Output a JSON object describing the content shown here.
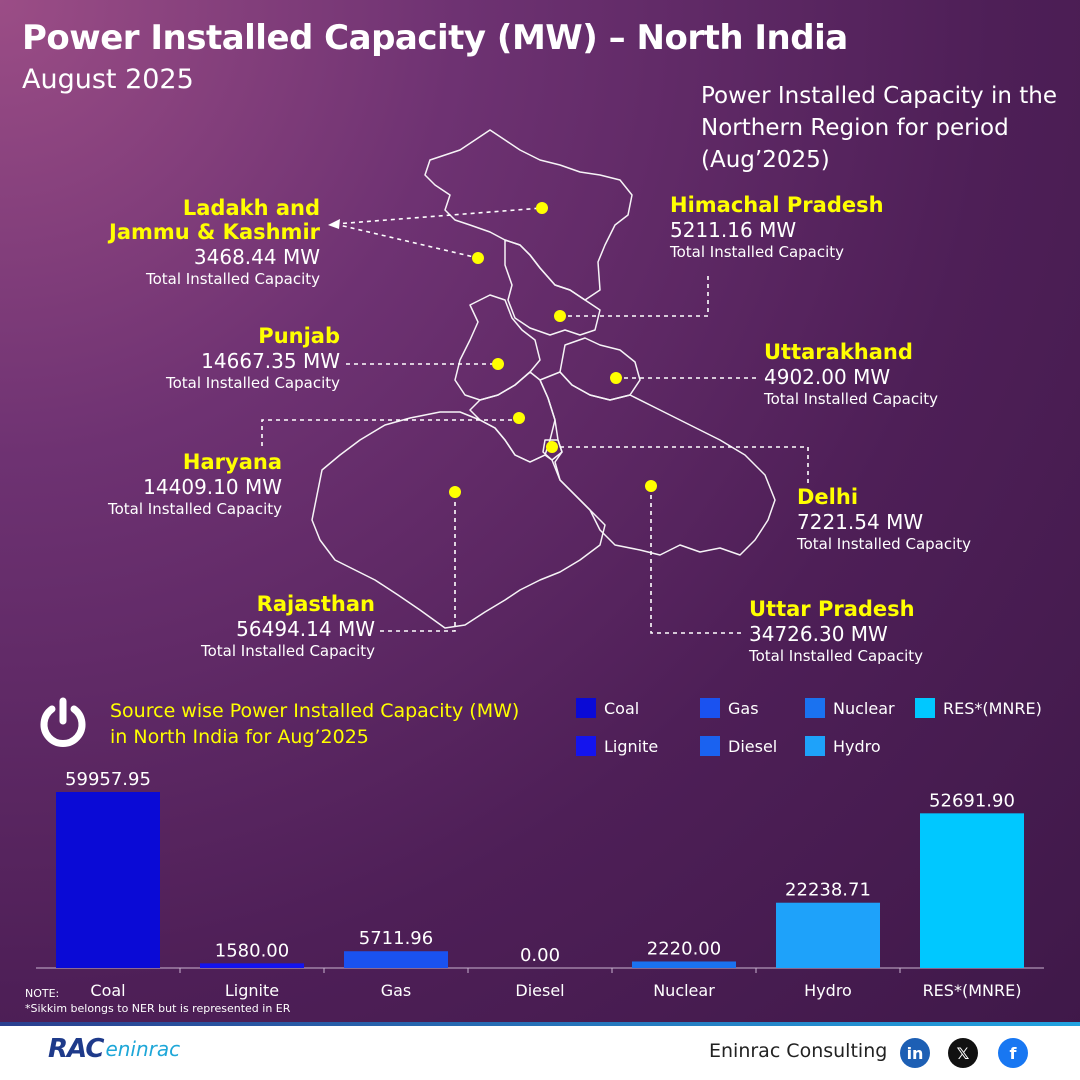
{
  "header": {
    "title": "Power Installed Capacity (MW) – North India",
    "subtitle": "August 2025",
    "region_note": "Power Installed Capacity in the Northern Region for period (Aug’2025)"
  },
  "states": [
    {
      "name_line1": "Ladakh and",
      "name_line2": "Jammu & Kashmir",
      "value": "3468.44 MW",
      "caption": "Total Installed Capacity"
    },
    {
      "name_line1": "Himachal Pradesh",
      "value": "5211.16 MW",
      "caption": "Total Installed Capacity"
    },
    {
      "name_line1": "Punjab",
      "value": "14667.35 MW",
      "caption": "Total Installed Capacity"
    },
    {
      "name_line1": "Uttarakhand",
      "value": "4902.00 MW",
      "caption": "Total Installed Capacity"
    },
    {
      "name_line1": "Haryana",
      "value": "14409.10 MW",
      "caption": "Total Installed Capacity"
    },
    {
      "name_line1": "Delhi",
      "value": "7221.54 MW",
      "caption": "Total Installed Capacity"
    },
    {
      "name_line1": "Rajasthan",
      "value": "56494.14 MW",
      "caption": "Total Installed Capacity"
    },
    {
      "name_line1": "Uttar Pradesh",
      "value": "34726.30 MW",
      "caption": "Total Installed Capacity"
    }
  ],
  "source_section": {
    "title_line1": "Source wise Power Installed Capacity (MW)",
    "title_line2": "in North India for Aug’2025",
    "icon": "power-icon"
  },
  "legend": [
    {
      "label": "Coal",
      "color": "#0a0ad6"
    },
    {
      "label": "Lignite",
      "color": "#1414ee"
    },
    {
      "label": "Gas",
      "color": "#1a52f0"
    },
    {
      "label": "Diesel",
      "color": "#1a62f0"
    },
    {
      "label": "Nuclear",
      "color": "#1a72f0"
    },
    {
      "label": "Hydro",
      "color": "#1ea2fa"
    },
    {
      "label": "RES*(MNRE)",
      "color": "#00c8ff"
    }
  ],
  "chart_data": {
    "type": "bar",
    "categories": [
      "Coal",
      "Lignite",
      "Gas",
      "Diesel",
      "Nuclear",
      "Hydro",
      "RES*(MNRE)"
    ],
    "values": [
      59957.95,
      1580.0,
      5711.96,
      0.0,
      2220.0,
      22238.71,
      52691.9
    ],
    "labels": [
      "59957.95",
      "1580.00",
      "5711.96",
      "0.00",
      "2220.00",
      "22238.71",
      "52691.90"
    ],
    "colors": [
      "#0a0ad6",
      "#1414ee",
      "#1a52f0",
      "#1a62f0",
      "#1a72f0",
      "#1ea2fa",
      "#00c8ff"
    ],
    "ylim": [
      0,
      59957.95
    ],
    "grid": false
  },
  "note": {
    "label": "NOTE:",
    "text": "*Sikkim belongs to NER but is represented in ER"
  },
  "footer": {
    "logo_text": "RAC",
    "logo_sub": "eninrac",
    "brand": "Eninrac Consulting",
    "social": [
      "linkedin-icon",
      "x-icon",
      "facebook-icon"
    ],
    "social_glyphs": [
      "in",
      "𝕏",
      "f"
    ]
  }
}
